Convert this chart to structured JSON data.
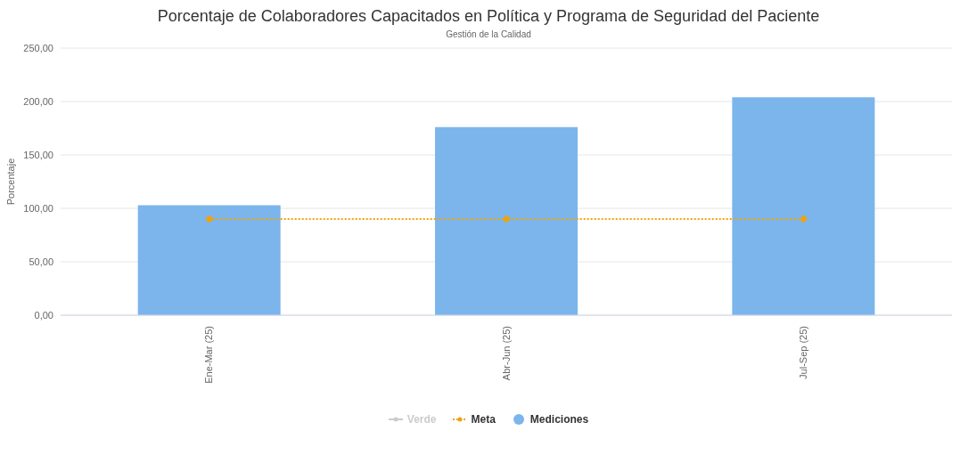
{
  "chart_data": {
    "type": "bar",
    "title": "Porcentaje de Colaboradores Capacitados en Política y Programa de Seguridad del Paciente",
    "subtitle": "Gestión de la Calidad",
    "ylabel": "Porcentaje",
    "categories": [
      "Ene-Mar (25)",
      "Abr-Jun (25)",
      "Jul-Sep (25)"
    ],
    "series": [
      {
        "name": "Verde",
        "type": "line",
        "color": "#cccccc",
        "values": [
          null,
          null,
          null
        ]
      },
      {
        "name": "Meta",
        "type": "line",
        "color": "#f0a30a",
        "line_style": "dotted",
        "values": [
          90,
          90,
          90
        ]
      },
      {
        "name": "Mediciones",
        "color": "#7cb5ec",
        "values": [
          103,
          176,
          204
        ]
      }
    ],
    "ylim": [
      0,
      250
    ],
    "yticks": [
      {
        "value": 0,
        "label": "0,00"
      },
      {
        "value": 50,
        "label": "50,00"
      },
      {
        "value": 100,
        "label": "100,00"
      },
      {
        "value": 150,
        "label": "150,00"
      },
      {
        "value": 200,
        "label": "200,00"
      },
      {
        "value": 250,
        "label": "250,00"
      }
    ],
    "grid": "y",
    "legend": "bottom",
    "marker": "circle"
  }
}
